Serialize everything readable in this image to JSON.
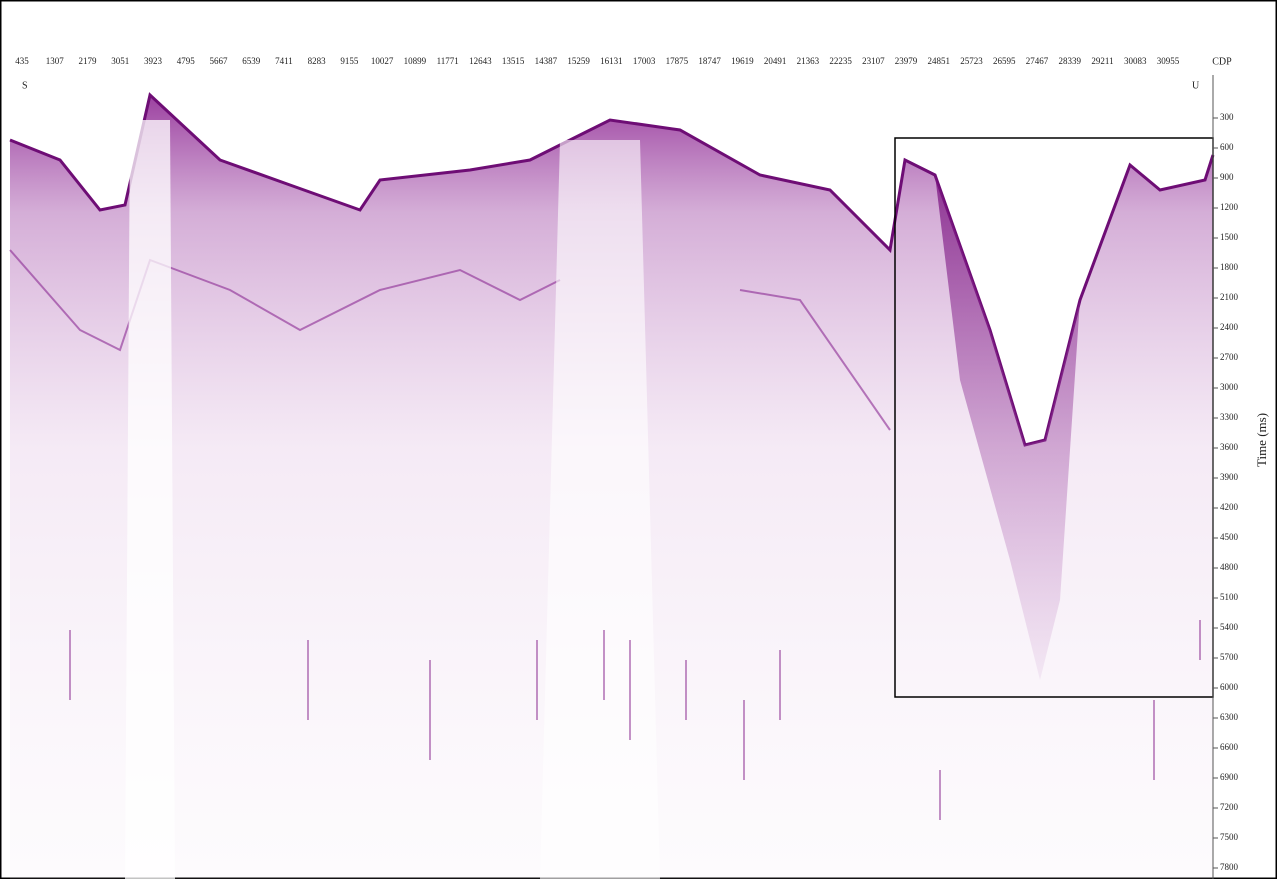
{
  "top_axis": {
    "label": "CDP",
    "ticks": [
      "435",
      "1307",
      "2179",
      "3051",
      "3923",
      "4795",
      "5667",
      "6539",
      "7411",
      "8283",
      "9155",
      "10027",
      "10899",
      "11771",
      "12643",
      "13515",
      "14387",
      "15259",
      "16131",
      "17003",
      "17875",
      "18747",
      "19619",
      "20491",
      "21363",
      "22235",
      "23107",
      "23979",
      "24851",
      "25723",
      "26595",
      "27467",
      "28339",
      "29211",
      "30083",
      "30955"
    ]
  },
  "right_axis": {
    "label": "Time (ms)",
    "ticks": [
      "300",
      "600",
      "900",
      "1200",
      "1500",
      "1800",
      "2100",
      "2400",
      "2700",
      "3000",
      "3300",
      "3600",
      "3900",
      "4200",
      "4500",
      "4800",
      "5100",
      "5400",
      "5700",
      "6000",
      "6300",
      "6600",
      "6900",
      "7200",
      "7500",
      "7800"
    ]
  },
  "markers": {
    "left": "S",
    "right": "U"
  }
}
